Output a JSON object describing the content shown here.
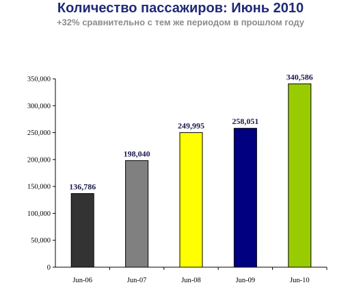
{
  "chart_data": {
    "type": "bar",
    "title": "Количество пассажиров: Июнь 2010",
    "subtitle": "+32% сравнительно с тем же периодом в прошлом году",
    "categories": [
      "Jun-06",
      "Jun-07",
      "Jun-08",
      "Jun-09",
      "Jun-10"
    ],
    "values": [
      136786,
      198040,
      249995,
      258051,
      340586
    ],
    "value_labels": [
      "136,786",
      "198,040",
      "249,995",
      "258,051",
      "340,586"
    ],
    "bar_colors": [
      "#333333",
      "#808080",
      "#ffff00",
      "#000080",
      "#99cc00"
    ],
    "ylim": [
      0,
      350000
    ],
    "yticks": [
      0,
      50000,
      100000,
      150000,
      200000,
      250000,
      300000,
      350000
    ],
    "ytick_labels": [
      "0",
      "50,000",
      "100,000",
      "150,000",
      "200,000",
      "250,000",
      "300,000",
      "350,000"
    ],
    "grid": false,
    "legend": "none"
  }
}
